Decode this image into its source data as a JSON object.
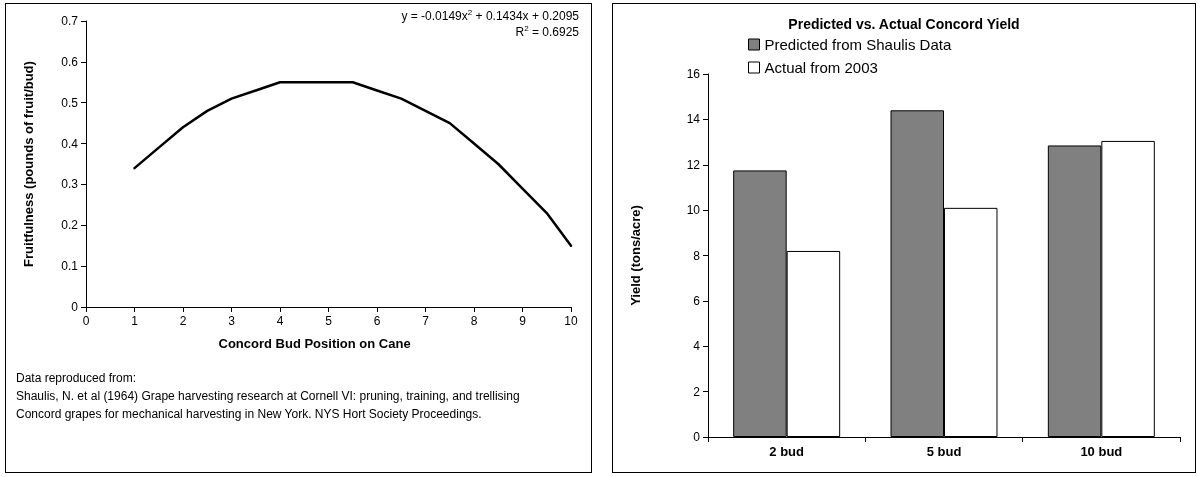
{
  "chart_data": [
    {
      "type": "line",
      "xlabel": "Concord Bud Position on Cane",
      "ylabel": "Fruitfulness (pounds of fruit/bud)",
      "annotations": [
        "y = -0.0149x$^{2}$ + 0.1434x + 0.2095",
        "R$^{2}$ = 0.6925",
        "Data reproduced from:",
        "Shaulis, N. et al (1964) Grape harvesting research at Cornell VI: pruning, training, and trellising Concord grapes for mechanical harvesting in New York. NYS Hort Society Proceedings."
      ],
      "x": [
        1,
        1.5,
        2,
        2.5,
        3,
        3.5,
        4,
        4.5,
        5,
        5.5,
        6,
        6.5,
        7,
        7.5,
        8,
        8.5,
        9,
        9.5,
        10
      ],
      "series": [
        {
          "color": "#000000",
          "values": [
            0.34,
            0.39,
            0.44,
            0.48,
            0.51,
            0.53,
            0.55,
            0.55,
            0.55,
            0.55,
            0.53,
            0.51,
            0.48,
            0.45,
            0.4,
            0.35,
            0.29,
            0.23,
            0.15
          ]
        }
      ],
      "xlim": [
        0,
        10
      ],
      "xticks": [
        0,
        1,
        2,
        3,
        4,
        5,
        6,
        7,
        8,
        9,
        10
      ],
      "ylim": [
        0,
        0.7
      ],
      "yticks": [
        0,
        0.1,
        0.2,
        0.3,
        0.4,
        0.5,
        0.6,
        0.7
      ],
      "grid": false,
      "legend": false,
      "marker": "none",
      "line_style": "solid"
    },
    {
      "type": "bar",
      "title": "Predicted vs. Actual Concord Yield",
      "ylabel": "Yield (tons/acre)",
      "categories": [
        "2 bud",
        "5 bud",
        "10 bud"
      ],
      "series": [
        {
          "name": "Predicted from Shaulis Data",
          "color": "#808080",
          "values": [
            11.75,
            14.4,
            12.85
          ]
        },
        {
          "name": "Actual from 2003",
          "color": "#ffffff",
          "values": [
            8.2,
            10.1,
            13.05
          ]
        }
      ],
      "ylim": [
        0,
        16
      ],
      "yticks": [
        0,
        2,
        4,
        6,
        8,
        10,
        12,
        14,
        16
      ],
      "grid": false,
      "legend": "top"
    }
  ]
}
